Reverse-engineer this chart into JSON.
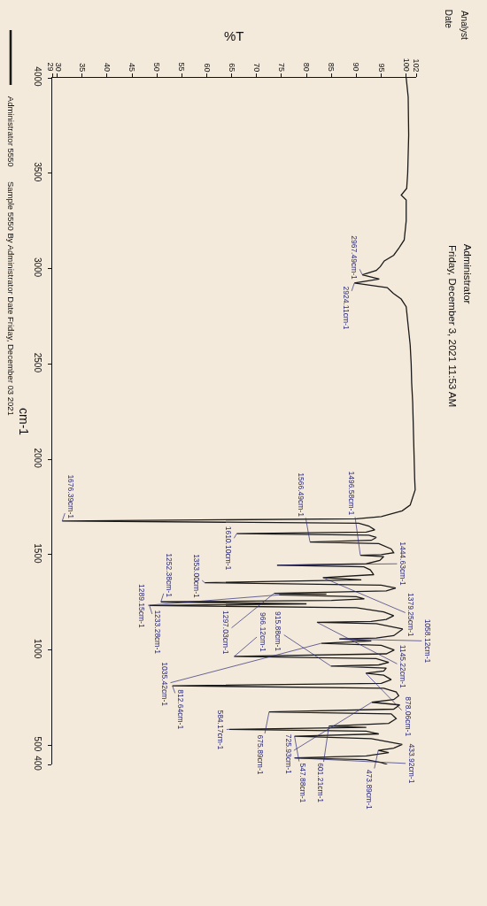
{
  "chart_data": {
    "type": "line",
    "title": "Administrator",
    "subtitle": "Friday, December 3, 2021 11:53 AM",
    "xlabel": "%T",
    "ylabel": "cm-1",
    "x": [
      100.0,
      100.4,
      100.5,
      100.3,
      100.1,
      99.0,
      100.0,
      100.0,
      99.6,
      98.6,
      97.5,
      95.6,
      94.8,
      94.0,
      91.2,
      94.6,
      89.6,
      96.2,
      97.4,
      99.0,
      100.0,
      100.4,
      100.8,
      101.0,
      101.1,
      101.3,
      101.4,
      101.5,
      101.6,
      101.7,
      101.8,
      101.3,
      100.8,
      99.2,
      95.0,
      90.0,
      31.0,
      90.5,
      92.5,
      93.7,
      92.0,
      66.0,
      92.5,
      94.0,
      93.0,
      80.7,
      94.5,
      97.0,
      97.5,
      95.0,
      90.8,
      95.5,
      94.7,
      92.0,
      74.1,
      91.5,
      92.8,
      93.5,
      83.3,
      91.0,
      59.6,
      95.0,
      97.9,
      96.0,
      73.5,
      84.0,
      74.5,
      90.0,
      91.6,
      85.0,
      50.8,
      80.0,
      48.5,
      90.0,
      95.5,
      97.5,
      96.0,
      93.0,
      82.1,
      94.0,
      99.3,
      97.5,
      94.0,
      86.6,
      93.0,
      83.0,
      95.0,
      97.6,
      96.0,
      65.5,
      94.0,
      96.5,
      94.5,
      84.9,
      96.0,
      95.5,
      91.9,
      95.5,
      97.0,
      95.0,
      53.1,
      95.5,
      98.0,
      98.5,
      97.5,
      93.1,
      98.7,
      97.5,
      72.5,
      97.0,
      98.0,
      96.5,
      84.5,
      92.0,
      64.5,
      92.0,
      94.5,
      77.6,
      93.0,
      99.2,
      97.5,
      94.4,
      96.5,
      92.0,
      77.6,
      92.0,
      95.0,
      96.2
    ],
    "series": [
      {
        "name": "Administrator 5550",
        "color": "#1a1a1a",
        "values": [
          4000,
          3900,
          3700,
          3500,
          3420,
          3385,
          3360,
          3250,
          3150,
          3110,
          3070,
          3040,
          3010,
          2990,
          2967.49,
          2945,
          2924.11,
          2900,
          2870,
          2840,
          2800,
          2700,
          2600,
          2500,
          2400,
          2300,
          2200,
          2100,
          2000,
          1900,
          1840,
          1800,
          1760,
          1730,
          1700,
          1688,
          1676.39,
          1665,
          1650,
          1630,
          1618,
          1610.1,
          1602,
          1590,
          1575,
          1566.49,
          1558,
          1530,
          1510,
          1500,
          1496.58,
          1490,
          1470,
          1452,
          1444.63,
          1436,
          1420,
          1395,
          1379.25,
          1368,
          1353.0,
          1340,
          1325,
          1310,
          1297.03,
          1293,
          1289.15,
          1280,
          1268,
          1260,
          1252.38,
          1242,
          1233.28,
          1222,
          1200,
          1180,
          1160,
          1150,
          1145.22,
          1138,
          1110,
          1075,
          1063,
          1058.12,
          1048,
          1035.42,
          1025,
          1000,
          980,
          966.12,
          955,
          935,
          922,
          915.88,
          905,
          890,
          878.06,
          868,
          845,
          825,
          812.64,
          800,
          780,
          760,
          740,
          725.93,
          712,
          690,
          675.89,
          665,
          640,
          615,
          601.21,
          594,
          584.17,
          575,
          560,
          547.88,
          535,
          505,
          485,
          473.89,
          462,
          445,
          433.92,
          425,
          410,
          400
        ]
      }
    ],
    "xlim": [
      29,
      102
    ],
    "xticks": [
      29,
      30,
      35,
      40,
      45,
      50,
      55,
      60,
      65,
      70,
      75,
      80,
      85,
      90,
      95,
      100,
      102
    ],
    "ylim": [
      400,
      4000
    ],
    "yticks": [
      4000,
      3500,
      3000,
      2500,
      2000,
      1500,
      1000,
      500,
      400
    ],
    "grid": false,
    "legend": "left",
    "annotations": [
      "Analyst",
      "Date",
      "Sample 5550 By Administrator Date Friday, December 03 2021",
      {
        "text": "2967.49cm-1",
        "x": 91.2,
        "y": 2967.49
      },
      {
        "text": "2924.11cm-1",
        "x": 89.6,
        "y": 2924.11
      },
      {
        "text": "1676.39cm-1",
        "x": 31.0,
        "y": 1676.39
      },
      {
        "text": "1610.10cm-1",
        "x": 66.0,
        "y": 1610.1
      },
      {
        "text": "1566.49cm-1",
        "x": 80.7,
        "y": 1566.49
      },
      {
        "text": "1496.58cm-1",
        "x": 90.8,
        "y": 1496.58
      },
      {
        "text": "1444.63cm-1",
        "x": 74.1,
        "y": 1444.63
      },
      {
        "text": "1379.25cm-1",
        "x": 83.3,
        "y": 1379.25
      },
      {
        "text": "1353.00cm-1",
        "x": 59.6,
        "y": 1353.0
      },
      {
        "text": "1297.03cm-1",
        "x": 73.5,
        "y": 1297.03
      },
      {
        "text": "1289.15cm-1",
        "x": 74.5,
        "y": 1289.15
      },
      {
        "text": "1252.38cm-1",
        "x": 50.8,
        "y": 1252.38
      },
      {
        "text": "1233.28cm-1",
        "x": 48.5,
        "y": 1233.28
      },
      {
        "text": "1145.22cm-1",
        "x": 82.1,
        "y": 1145.22
      },
      {
        "text": "1058.12cm-1",
        "x": 86.6,
        "y": 1058.12
      },
      {
        "text": "1035.42cm-1",
        "x": 83.0,
        "y": 1035.42
      },
      {
        "text": "966.12cm-1",
        "x": 65.5,
        "y": 966.12
      },
      {
        "text": "915.88cm-1",
        "x": 84.9,
        "y": 915.88
      },
      {
        "text": "878.06cm-1",
        "x": 91.9,
        "y": 878.06
      },
      {
        "text": "812.64cm-1",
        "x": 53.1,
        "y": 812.64
      },
      {
        "text": "725.93cm-1",
        "x": 93.1,
        "y": 725.93
      },
      {
        "text": "675.89cm-1",
        "x": 72.5,
        "y": 675.89
      },
      {
        "text": "601.21cm-1",
        "x": 84.5,
        "y": 601.21
      },
      {
        "text": "584.17cm-1",
        "x": 64.5,
        "y": 584.17
      },
      {
        "text": "547.88cm-1",
        "x": 77.6,
        "y": 547.88
      },
      {
        "text": "473.89cm-1",
        "x": 94.4,
        "y": 473.89
      },
      {
        "text": "433.92cm-1",
        "x": 77.6,
        "y": 433.92
      }
    ]
  }
}
